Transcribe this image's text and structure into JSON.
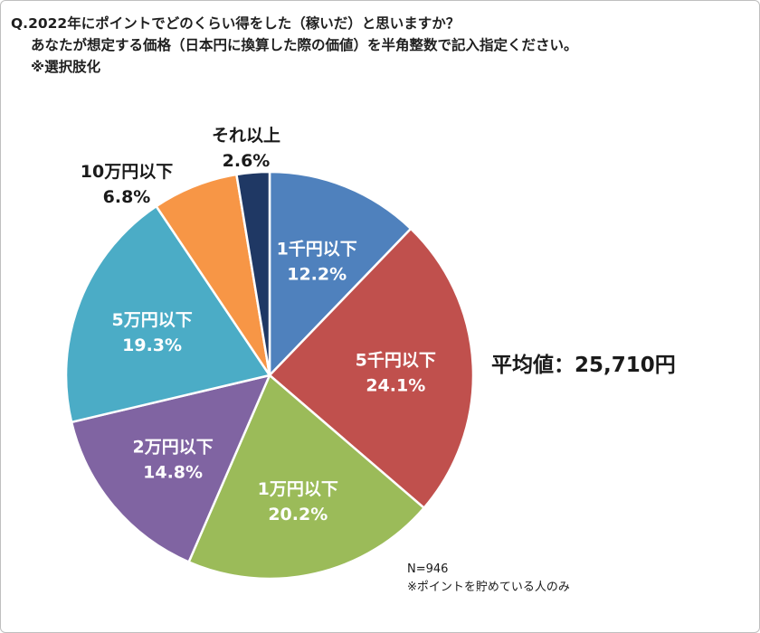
{
  "question": {
    "line1": "Q.2022年にポイントでどのくらい得をした（稼いだ）と思いますか？",
    "line2": "あなたが想定する価格（日本円に換算した際の価値）を半角整数で記入指定ください。",
    "line3": "※選択肢化"
  },
  "average_label": "平均値：25,710円",
  "notes": {
    "n": "N=946",
    "caveat": "※ポイントを貯めている人のみ"
  },
  "chart_data": {
    "type": "pie",
    "title": "Q.2022年にポイントでどのくらい得をした（稼いだ）と思いますか？",
    "slices": [
      {
        "label": "1千円以下",
        "value": 12.2,
        "value_label": "12.2%",
        "color": "#4f81bd",
        "label_placement": "inside"
      },
      {
        "label": "5千円以下",
        "value": 24.1,
        "value_label": "24.1%",
        "color": "#c0504d",
        "label_placement": "inside"
      },
      {
        "label": "1万円以下",
        "value": 20.2,
        "value_label": "20.2%",
        "color": "#9bbb59",
        "label_placement": "inside"
      },
      {
        "label": "2万円以下",
        "value": 14.8,
        "value_label": "14.8%",
        "color": "#8064a2",
        "label_placement": "inside"
      },
      {
        "label": "5万円以下",
        "value": 19.3,
        "value_label": "19.3%",
        "color": "#4bacc6",
        "label_placement": "inside"
      },
      {
        "label": "10万円以下",
        "value": 6.8,
        "value_label": "6.8%",
        "color": "#f79646",
        "label_placement": "outside"
      },
      {
        "label": "それ以上",
        "value": 2.6,
        "value_label": "2.6%",
        "color": "#1f3864",
        "label_placement": "outside"
      }
    ],
    "start": "12 o'clock",
    "direction": "clockwise"
  }
}
